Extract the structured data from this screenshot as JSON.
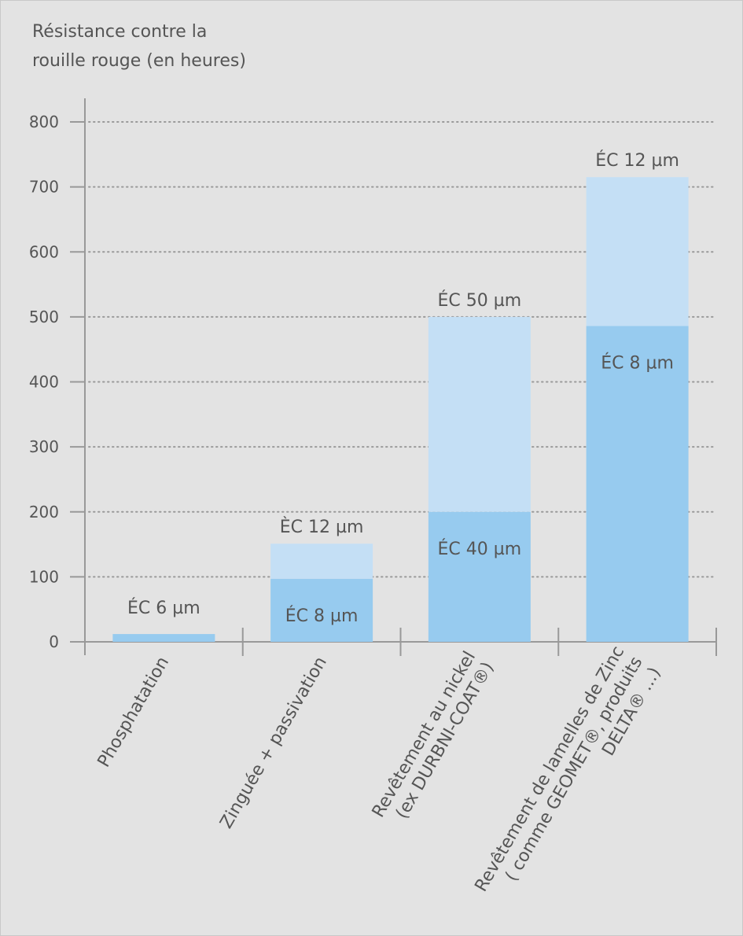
{
  "chart_data": {
    "type": "bar",
    "stacked": true,
    "title_lines": [
      "Résistance contre la",
      "rouille rouge (en heures)"
    ],
    "categories": [
      [
        "Phosphatation"
      ],
      [
        "Zinguée + passivation"
      ],
      [
        "Revêtement au nickel",
        "(ex DURBNI-COAT®)"
      ],
      [
        "Revêtement de lamelles de Zinc",
        "( comme GEOMET®, produits",
        "DELTA® ...)"
      ]
    ],
    "series": [
      {
        "values": [
          12,
          97,
          200,
          486
        ]
      },
      {
        "values": [
          0,
          54,
          300,
          229
        ]
      }
    ],
    "segment_labels": [
      [
        "ÉC 6 µm",
        null,
        null
      ],
      [
        "ÉC 8 µm",
        "ÈC 12 µm",
        null
      ],
      [
        "ÉC 40 µm",
        "ÉC 50 µm",
        null
      ],
      [
        "ÉC 8 µm",
        "ÉC 12 µm",
        null
      ]
    ],
    "ylim": [
      0,
      800
    ],
    "yticks": [
      0,
      100,
      200,
      300,
      400,
      500,
      600,
      700,
      800
    ],
    "grid": "dotted-horizontal",
    "colors": {
      "background": "#e3e3e3",
      "bar_lower": "#97cbef",
      "bar_upper": "#c4dff5",
      "axis": "#999999",
      "grid": "#9a9a9a",
      "text": "#555555"
    }
  }
}
